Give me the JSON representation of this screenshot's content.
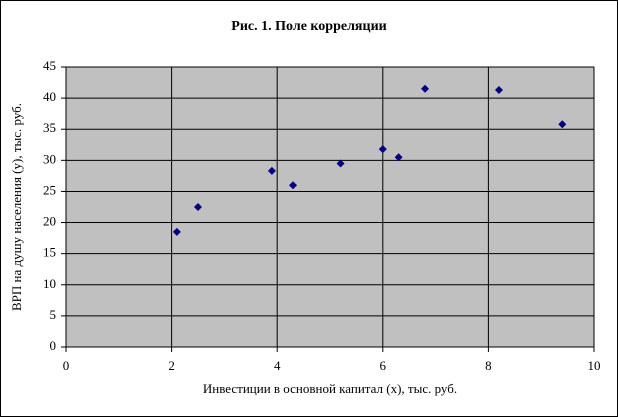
{
  "chart_data": {
    "type": "scatter",
    "title": "Рис. 1. Поле корреляции",
    "x_label": "Инвестиции в основной капитал (x), тыс. руб.",
    "y_label": "ВРП на душу населения (y), тыс. руб.",
    "series": [
      {
        "color": "#000080",
        "x": [
          2.1,
          2.5,
          3.9,
          4.3,
          5.2,
          6.0,
          6.3,
          6.8,
          8.2,
          9.4
        ],
        "values": [
          18.5,
          22.5,
          28.3,
          26,
          29.5,
          31.8,
          30.5,
          41.5,
          41.3,
          35.8
        ]
      }
    ],
    "xlim": [
      0,
      10
    ],
    "xticks": [
      0,
      2,
      4,
      6,
      8,
      10
    ],
    "ylim": [
      0,
      45
    ],
    "yticks": [
      0,
      5,
      10,
      15,
      20,
      25,
      30,
      35,
      40,
      45
    ],
    "grid": true
  }
}
